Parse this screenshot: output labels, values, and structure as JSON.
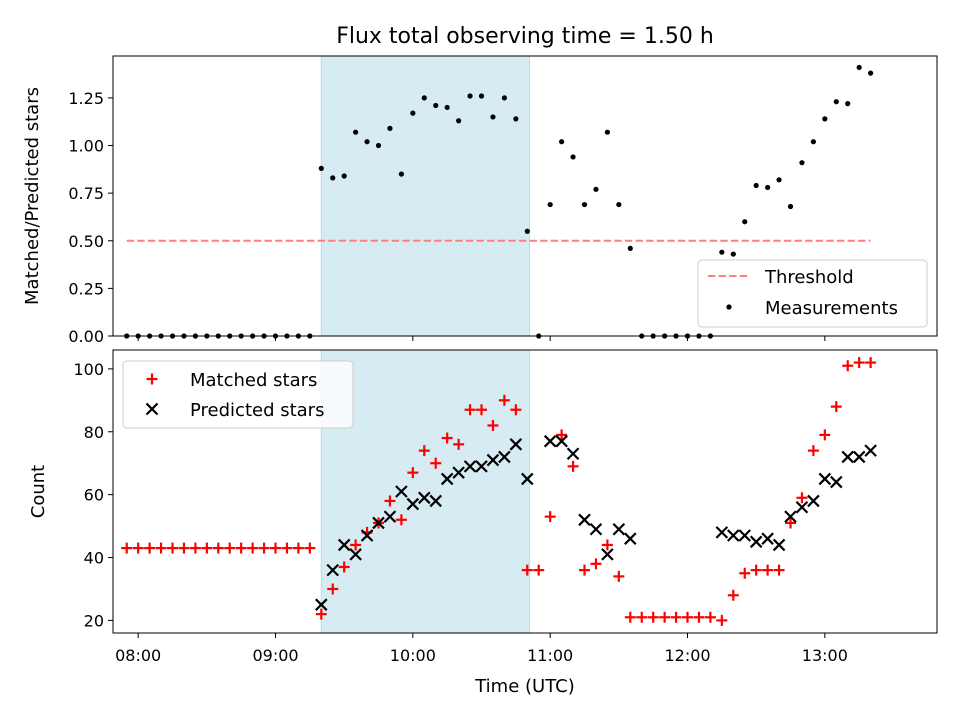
{
  "chart_data": [
    {
      "type": "scatter",
      "title": "Flux total observing time = 1.50 h",
      "xlabel": "",
      "ylabel": "Matched/Predicted stars",
      "ylim": [
        0,
        1.47
      ],
      "yticks": [
        0.0,
        0.25,
        0.5,
        0.75,
        1.0,
        1.25
      ],
      "ytick_labels": [
        "0.00",
        "0.25",
        "0.50",
        "0.75",
        "1.00",
        "1.25"
      ],
      "xlim": [
        "07:49",
        "13:49"
      ],
      "shaded_span": [
        "09:20",
        "10:51"
      ],
      "legend_position": "lower-right",
      "threshold": {
        "name": "Threshold",
        "x": [
          "07:55",
          "13:20"
        ],
        "y": 0.5,
        "color": "#ff7f7f"
      },
      "measurements": {
        "name": "Measurements",
        "color": "#000000",
        "x": [
          "07:55",
          "08:00",
          "08:05",
          "08:10",
          "08:15",
          "08:20",
          "08:25",
          "08:30",
          "08:35",
          "08:40",
          "08:45",
          "08:50",
          "08:55",
          "09:00",
          "09:05",
          "09:10",
          "09:15",
          "09:20",
          "09:25",
          "09:30",
          "09:35",
          "09:40",
          "09:45",
          "09:50",
          "09:55",
          "10:00",
          "10:05",
          "10:10",
          "10:15",
          "10:20",
          "10:25",
          "10:30",
          "10:35",
          "10:40",
          "10:45",
          "10:50",
          "10:55",
          "11:00",
          "11:05",
          "11:10",
          "11:15",
          "11:20",
          "11:25",
          "11:30",
          "11:35",
          "11:40",
          "11:45",
          "11:50",
          "11:55",
          "12:00",
          "12:05",
          "12:10",
          "12:15",
          "12:20",
          "12:25",
          "12:30",
          "12:35",
          "12:40",
          "12:45",
          "12:50",
          "12:55",
          "13:00",
          "13:05",
          "13:10",
          "13:15",
          "13:20"
        ],
        "y": [
          0,
          0,
          0,
          0,
          0,
          0,
          0,
          0,
          0,
          0,
          0,
          0,
          0,
          0,
          0,
          0,
          0,
          0.88,
          0.83,
          0.84,
          1.07,
          1.02,
          1.0,
          1.09,
          0.85,
          1.17,
          1.25,
          1.21,
          1.2,
          1.13,
          1.26,
          1.26,
          1.15,
          1.25,
          1.14,
          0.55,
          0.0,
          0.69,
          1.02,
          0.94,
          0.69,
          0.77,
          1.07,
          0.69,
          0.46,
          0.0,
          0.0,
          0.0,
          0.0,
          0.0,
          0.0,
          0.0,
          0.44,
          0.43,
          0.6,
          0.79,
          0.78,
          0.82,
          0.68,
          0.91,
          1.02,
          1.14,
          1.23,
          1.22,
          1.41,
          1.38
        ]
      }
    },
    {
      "type": "scatter",
      "title": "",
      "xlabel": "Time (UTC)",
      "ylabel": "Count",
      "ylim": [
        16,
        106
      ],
      "yticks": [
        20,
        40,
        60,
        80,
        100
      ],
      "ytick_labels": [
        "20",
        "40",
        "60",
        "80",
        "100"
      ],
      "xlim": [
        "07:49",
        "13:49"
      ],
      "xticks": [
        "08:00",
        "09:00",
        "10:00",
        "11:00",
        "12:00",
        "13:00"
      ],
      "shaded_span": [
        "09:20",
        "10:51"
      ],
      "legend_position": "upper-left",
      "series": [
        {
          "name": "Matched stars",
          "marker": "+",
          "color": "#ff0000",
          "x": [
            "07:55",
            "08:00",
            "08:05",
            "08:10",
            "08:15",
            "08:20",
            "08:25",
            "08:30",
            "08:35",
            "08:40",
            "08:45",
            "08:50",
            "08:55",
            "09:00",
            "09:05",
            "09:10",
            "09:15",
            "09:20",
            "09:25",
            "09:30",
            "09:35",
            "09:40",
            "09:45",
            "09:50",
            "09:55",
            "10:00",
            "10:05",
            "10:10",
            "10:15",
            "10:20",
            "10:25",
            "10:30",
            "10:35",
            "10:40",
            "10:45",
            "10:50",
            "10:55",
            "11:00",
            "11:05",
            "11:10",
            "11:15",
            "11:20",
            "11:25",
            "11:30",
            "11:35",
            "11:40",
            "11:45",
            "11:50",
            "11:55",
            "12:00",
            "12:05",
            "12:10",
            "12:15",
            "12:20",
            "12:25",
            "12:30",
            "12:35",
            "12:40",
            "12:45",
            "12:50",
            "12:55",
            "13:00",
            "13:05",
            "13:10",
            "13:15",
            "13:20"
          ],
          "y": [
            43,
            43,
            43,
            43,
            43,
            43,
            43,
            43,
            43,
            43,
            43,
            43,
            43,
            43,
            43,
            43,
            43,
            22,
            30,
            37,
            44,
            48,
            51,
            58,
            52,
            67,
            74,
            70,
            78,
            76,
            87,
            87,
            82,
            90,
            87,
            36,
            36,
            53,
            79,
            69,
            36,
            38,
            44,
            34,
            21,
            21,
            21,
            21,
            21,
            21,
            21,
            21,
            20,
            28,
            35,
            36,
            36,
            36,
            51,
            59,
            74,
            79,
            88,
            101,
            102,
            102
          ]
        },
        {
          "name": "Predicted stars",
          "marker": "x",
          "color": "#000000",
          "x": [
            "09:20",
            "09:25",
            "09:30",
            "09:35",
            "09:40",
            "09:45",
            "09:50",
            "09:55",
            "10:00",
            "10:05",
            "10:10",
            "10:15",
            "10:20",
            "10:25",
            "10:30",
            "10:35",
            "10:40",
            "10:45",
            "10:50",
            "11:00",
            "11:05",
            "11:10",
            "11:15",
            "11:20",
            "11:25",
            "11:30",
            "11:35",
            "12:15",
            "12:20",
            "12:25",
            "12:30",
            "12:35",
            "12:40",
            "12:45",
            "12:50",
            "12:55",
            "13:00",
            "13:05",
            "13:10",
            "13:15",
            "13:20"
          ],
          "y": [
            25,
            36,
            44,
            41,
            47,
            51,
            53,
            61,
            57,
            59,
            58,
            65,
            67,
            69,
            69,
            71,
            72,
            76,
            65,
            77,
            77,
            73,
            52,
            49,
            41,
            49,
            46,
            48,
            47,
            47,
            45,
            46,
            44,
            53,
            56,
            58,
            65,
            64,
            72,
            72,
            74
          ]
        }
      ]
    }
  ]
}
